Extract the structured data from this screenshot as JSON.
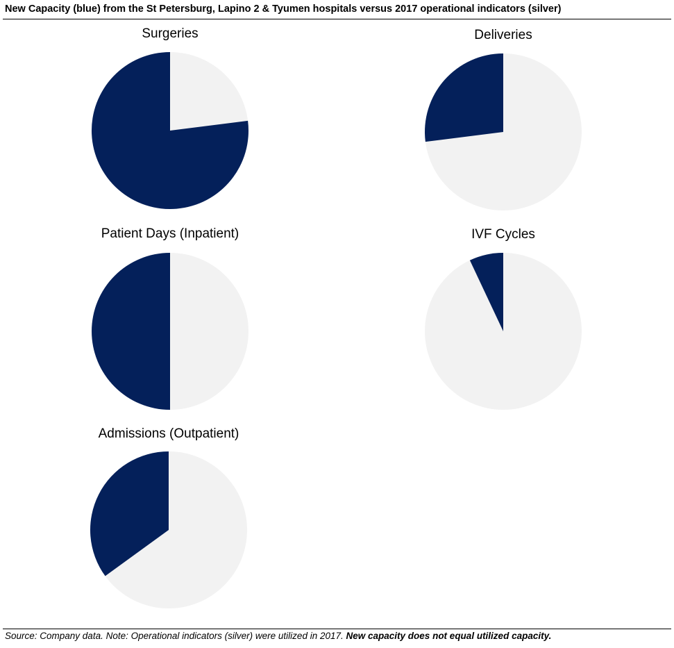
{
  "title": "New Capacity (blue) from the St Petersburg, Lapino 2 & Tyumen hospitals versus 2017 operational indicators (silver)",
  "footer": {
    "note": "Source: Company data. Note: Operational indicators (silver) were utilized in 2017.",
    "emphasis": "New capacity does not equal utilized capacity."
  },
  "colors": {
    "new_capacity": "#04205a",
    "operational": "#f2f2f2"
  },
  "chart_data": [
    {
      "type": "pie",
      "title": "Surgeries",
      "categories": [
        "New Capacity",
        "2017 operational indicators"
      ],
      "values": [
        0.77,
        0.23
      ]
    },
    {
      "type": "pie",
      "title": "Deliveries",
      "categories": [
        "New Capacity",
        "2017 operational indicators"
      ],
      "values": [
        0.27,
        0.73
      ]
    },
    {
      "type": "pie",
      "title": "Patient Days (Inpatient)",
      "categories": [
        "New Capacity",
        "2017 operational indicators"
      ],
      "values": [
        0.5,
        0.5
      ]
    },
    {
      "type": "pie",
      "title": "IVF Cycles",
      "categories": [
        "New Capacity",
        "2017 operational indicators"
      ],
      "values": [
        0.07,
        0.93
      ]
    },
    {
      "type": "pie",
      "title": "Admissions (Outpatient)",
      "categories": [
        "New Capacity",
        "2017 operational indicators"
      ],
      "values": [
        0.35,
        0.65
      ]
    }
  ]
}
